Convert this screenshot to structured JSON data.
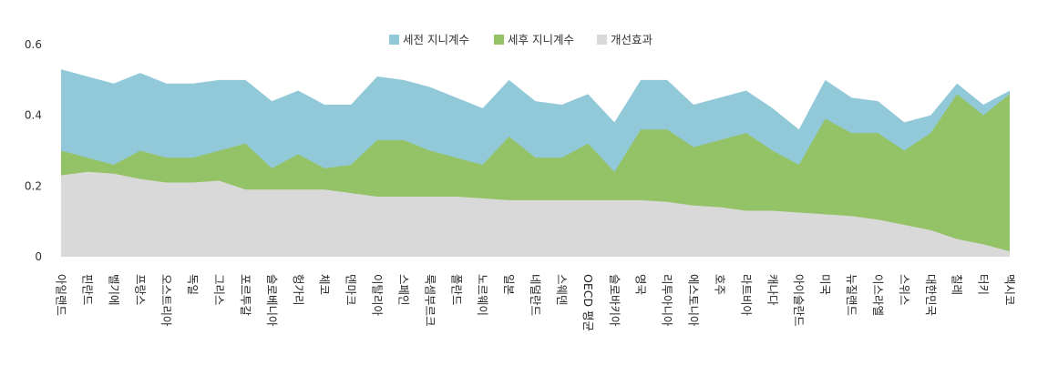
{
  "chart_data": {
    "type": "area",
    "categories": [
      "아일랜드",
      "핀란드",
      "벨기에",
      "프랑스",
      "오스트리아",
      "독일",
      "그리스",
      "포르투갈",
      "슬로베니아",
      "헝가리",
      "체코",
      "덴마크",
      "이탈리아",
      "스페인",
      "룩셈부르크",
      "폴란드",
      "노르웨이",
      "일본",
      "네덜란드",
      "스웨덴",
      "OECD 평균",
      "슬로바키아",
      "영국",
      "리투아니아",
      "에스토니아",
      "호주",
      "라트비아",
      "캐나다",
      "아이슬란드",
      "미국",
      "뉴질랜드",
      "이스라엘",
      "스위스",
      "대한민국",
      "칠레",
      "터키",
      "멕시코"
    ],
    "series": [
      {
        "name": "세전 지니계수",
        "color": "#92c9d9",
        "values": [
          0.53,
          0.51,
          0.49,
          0.52,
          0.49,
          0.49,
          0.5,
          0.5,
          0.44,
          0.47,
          0.43,
          0.43,
          0.51,
          0.5,
          0.48,
          0.45,
          0.42,
          0.5,
          0.44,
          0.43,
          0.46,
          0.38,
          0.5,
          0.5,
          0.43,
          0.45,
          0.47,
          0.42,
          0.36,
          0.5,
          0.45,
          0.44,
          0.38,
          0.4,
          0.49,
          0.43,
          0.47
        ]
      },
      {
        "name": "세후 지니계수",
        "color": "#94c367",
        "values": [
          0.3,
          0.28,
          0.26,
          0.3,
          0.28,
          0.28,
          0.3,
          0.32,
          0.25,
          0.29,
          0.25,
          0.26,
          0.33,
          0.33,
          0.3,
          0.28,
          0.26,
          0.34,
          0.28,
          0.28,
          0.32,
          0.24,
          0.36,
          0.36,
          0.31,
          0.33,
          0.35,
          0.3,
          0.26,
          0.39,
          0.35,
          0.35,
          0.3,
          0.35,
          0.46,
          0.4,
          0.46
        ]
      },
      {
        "name": "개선효과",
        "color": "#d9d9d9",
        "values": [
          0.23,
          0.24,
          0.235,
          0.22,
          0.21,
          0.21,
          0.215,
          0.19,
          0.19,
          0.19,
          0.19,
          0.18,
          0.17,
          0.17,
          0.17,
          0.17,
          0.165,
          0.16,
          0.16,
          0.16,
          0.16,
          0.16,
          0.16,
          0.155,
          0.145,
          0.14,
          0.13,
          0.13,
          0.125,
          0.12,
          0.115,
          0.105,
          0.09,
          0.075,
          0.05,
          0.035,
          0.015
        ]
      }
    ],
    "yticks": [
      "0",
      "0.2",
      "0.4",
      "0.6"
    ],
    "ylim": [
      0,
      0.6
    ],
    "legend_position": "top-center",
    "title": "",
    "xlabel": "",
    "ylabel": ""
  }
}
